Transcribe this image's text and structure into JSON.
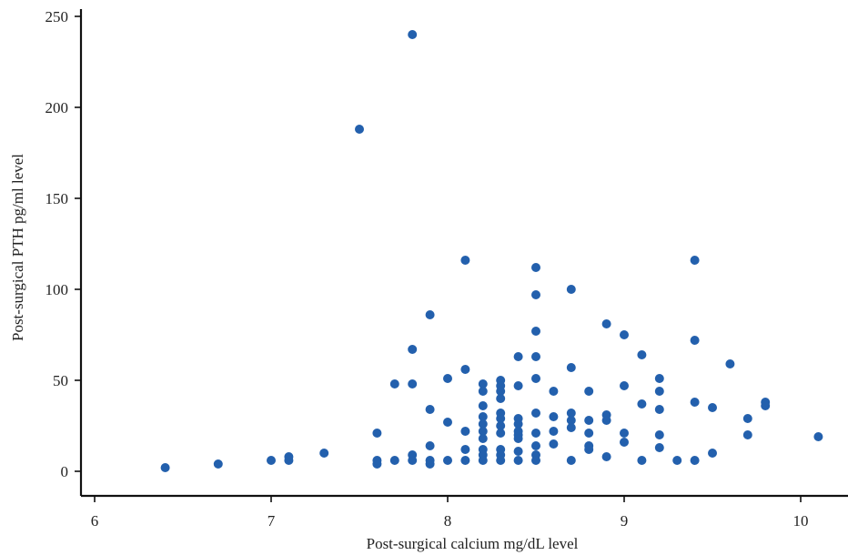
{
  "chart_data": {
    "type": "scatter",
    "title": "",
    "xlabel": "Post-surgical calcium mg/dL level",
    "ylabel": "Post-surgical PTH pg/ml level",
    "xlim": [
      6,
      10.3
    ],
    "ylim": [
      -12,
      255
    ],
    "xticks": [
      6,
      7,
      8,
      9,
      10
    ],
    "yticks": [
      0,
      50,
      100,
      150,
      200,
      250
    ],
    "grid": false,
    "legend": "none",
    "point_color": "#2360ad",
    "series": [
      {
        "points": [
          [
            6.4,
            2
          ],
          [
            6.7,
            4
          ],
          [
            7.0,
            6
          ],
          [
            7.1,
            6
          ],
          [
            7.1,
            8
          ],
          [
            7.3,
            10
          ],
          [
            7.5,
            188
          ],
          [
            7.6,
            4
          ],
          [
            7.6,
            6
          ],
          [
            7.6,
            21
          ],
          [
            7.7,
            6
          ],
          [
            7.7,
            48
          ],
          [
            7.8,
            240
          ],
          [
            7.8,
            67
          ],
          [
            7.8,
            48
          ],
          [
            7.8,
            9
          ],
          [
            7.8,
            6
          ],
          [
            7.9,
            86
          ],
          [
            7.9,
            34
          ],
          [
            7.9,
            14
          ],
          [
            7.9,
            6
          ],
          [
            7.9,
            4
          ],
          [
            8.0,
            51
          ],
          [
            8.0,
            27
          ],
          [
            8.0,
            6
          ],
          [
            8.1,
            116
          ],
          [
            8.1,
            56
          ],
          [
            8.1,
            22
          ],
          [
            8.1,
            12
          ],
          [
            8.1,
            6
          ],
          [
            8.2,
            48
          ],
          [
            8.2,
            44
          ],
          [
            8.2,
            36
          ],
          [
            8.2,
            30
          ],
          [
            8.2,
            26
          ],
          [
            8.2,
            22
          ],
          [
            8.2,
            18
          ],
          [
            8.2,
            12
          ],
          [
            8.2,
            9
          ],
          [
            8.2,
            6
          ],
          [
            8.3,
            50
          ],
          [
            8.3,
            47
          ],
          [
            8.3,
            44
          ],
          [
            8.3,
            40
          ],
          [
            8.3,
            32
          ],
          [
            8.3,
            29
          ],
          [
            8.3,
            25
          ],
          [
            8.3,
            21
          ],
          [
            8.3,
            12
          ],
          [
            8.3,
            9
          ],
          [
            8.3,
            6
          ],
          [
            8.4,
            63
          ],
          [
            8.4,
            47
          ],
          [
            8.4,
            29
          ],
          [
            8.4,
            26
          ],
          [
            8.4,
            22
          ],
          [
            8.4,
            20
          ],
          [
            8.4,
            18
          ],
          [
            8.4,
            11
          ],
          [
            8.4,
            6
          ],
          [
            8.5,
            112
          ],
          [
            8.5,
            97
          ],
          [
            8.5,
            77
          ],
          [
            8.5,
            63
          ],
          [
            8.5,
            51
          ],
          [
            8.5,
            32
          ],
          [
            8.5,
            21
          ],
          [
            8.5,
            14
          ],
          [
            8.5,
            9
          ],
          [
            8.5,
            6
          ],
          [
            8.6,
            44
          ],
          [
            8.6,
            30
          ],
          [
            8.6,
            22
          ],
          [
            8.6,
            15
          ],
          [
            8.7,
            100
          ],
          [
            8.7,
            57
          ],
          [
            8.7,
            32
          ],
          [
            8.7,
            28
          ],
          [
            8.7,
            24
          ],
          [
            8.7,
            6
          ],
          [
            8.8,
            44
          ],
          [
            8.8,
            28
          ],
          [
            8.8,
            21
          ],
          [
            8.8,
            14
          ],
          [
            8.8,
            12
          ],
          [
            8.9,
            81
          ],
          [
            8.9,
            31
          ],
          [
            8.9,
            28
          ],
          [
            8.9,
            8
          ],
          [
            9.0,
            75
          ],
          [
            9.0,
            47
          ],
          [
            9.0,
            21
          ],
          [
            9.0,
            16
          ],
          [
            9.1,
            64
          ],
          [
            9.1,
            37
          ],
          [
            9.1,
            6
          ],
          [
            9.2,
            51
          ],
          [
            9.2,
            44
          ],
          [
            9.2,
            34
          ],
          [
            9.2,
            20
          ],
          [
            9.2,
            13
          ],
          [
            9.3,
            6
          ],
          [
            9.4,
            116
          ],
          [
            9.4,
            72
          ],
          [
            9.4,
            38
          ],
          [
            9.4,
            6
          ],
          [
            9.5,
            35
          ],
          [
            9.5,
            10
          ],
          [
            9.6,
            59
          ],
          [
            9.7,
            29
          ],
          [
            9.7,
            20
          ],
          [
            9.8,
            38
          ],
          [
            9.8,
            36
          ],
          [
            10.1,
            19
          ]
        ]
      }
    ]
  }
}
